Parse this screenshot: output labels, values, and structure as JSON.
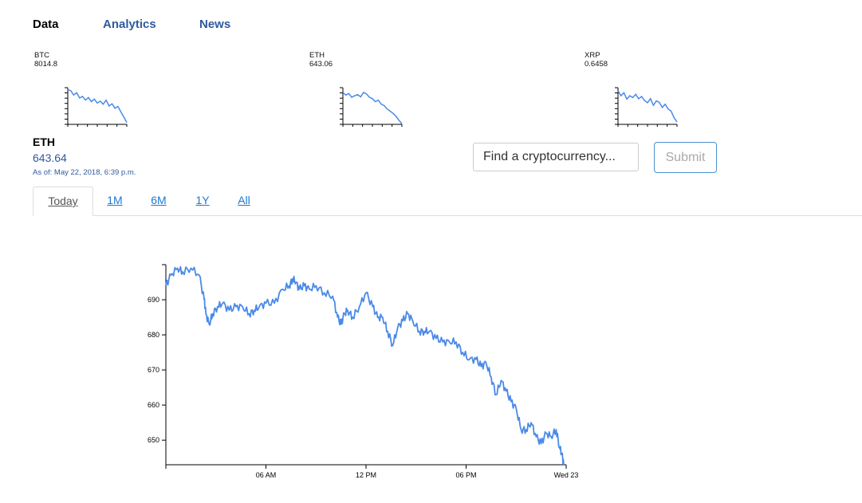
{
  "nav": {
    "items": [
      {
        "label": "Data",
        "active": true
      },
      {
        "label": "Analytics",
        "active": false
      },
      {
        "label": "News",
        "active": false
      }
    ]
  },
  "tickers": [
    {
      "symbol": "BTC",
      "price": "8014.8"
    },
    {
      "symbol": "ETH",
      "price": "643.06"
    },
    {
      "symbol": "XRP",
      "price": "0.6458"
    }
  ],
  "detail": {
    "symbol": "ETH",
    "price": "643.64",
    "as_of": "As of: May 22, 2018, 6:39 p.m."
  },
  "search": {
    "placeholder": "Find a cryptocurrency...",
    "submit_label": "Submit"
  },
  "tabs": [
    {
      "label": "Today",
      "active": true
    },
    {
      "label": "1M",
      "active": false
    },
    {
      "label": "6M",
      "active": false
    },
    {
      "label": "1Y",
      "active": false
    },
    {
      "label": "All",
      "active": false
    }
  ],
  "colors": {
    "line": "#4a8ae8",
    "link": "#1f78d1",
    "accent": "#2f5a9e"
  },
  "chart_data": {
    "type": "line",
    "title": "",
    "xlabel": "",
    "ylabel": "",
    "x_ticks": [
      "06 AM",
      "12 PM",
      "06 PM",
      "Wed 23"
    ],
    "y_ticks": [
      650,
      660,
      670,
      680,
      690
    ],
    "ylim": [
      643,
      700
    ],
    "xlim_hours": [
      0,
      24
    ],
    "series": [
      {
        "x": [
          0,
          0.3,
          0.7,
          1.0,
          1.5,
          2.0,
          2.3,
          2.4,
          2.6,
          2.8,
          3.1,
          3.4,
          3.8,
          4.2,
          4.6,
          5.0,
          5.3,
          5.6,
          6.0,
          6.5,
          7.0,
          7.4,
          7.6,
          7.8,
          8.0,
          8.3,
          8.6,
          9.0,
          9.5,
          10.0,
          10.3,
          10.5,
          10.7,
          10.9,
          11.2,
          11.6,
          12.0,
          12.4,
          12.7,
          13.0,
          13.3,
          13.6,
          13.9,
          14.2,
          14.5,
          14.8,
          15.2,
          15.5,
          15.8,
          16.2,
          16.6,
          17.0,
          17.4,
          17.8,
          18.2,
          18.6,
          18.9,
          19.2,
          19.5,
          19.8,
          20.1,
          20.4,
          20.7,
          21.0,
          21.3,
          21.6,
          21.9,
          22.2,
          22.5,
          22.8,
          23.1,
          23.4,
          23.6,
          23.75,
          23.85
        ],
        "y": [
          694,
          697,
          699,
          698,
          699,
          697,
          690,
          686,
          683,
          686,
          688,
          689,
          687,
          688,
          688,
          686,
          687,
          688,
          689,
          689,
          693,
          694,
          696,
          695,
          693,
          694,
          693,
          694,
          692,
          691,
          685,
          683,
          686,
          687,
          685,
          688,
          692,
          688,
          685,
          685,
          681,
          677,
          682,
          684,
          686,
          684,
          681,
          681,
          681,
          679,
          678,
          678,
          678,
          675,
          673,
          673,
          671,
          672,
          668,
          663,
          667,
          664,
          661,
          659,
          653,
          653,
          655,
          651,
          649,
          652,
          651,
          653,
          648,
          646,
          643
        ]
      }
    ]
  },
  "sparklines": [
    {
      "symbol": "BTC",
      "values": [
        9.5,
        9.2,
        8.0,
        8.6,
        7.2,
        7.6,
        6.6,
        7.3,
        6.2,
        6.9,
        5.8,
        6.3,
        5.5,
        6.6,
        5.0,
        5.6,
        4.4,
        4.9,
        3.4,
        2.0,
        0.5
      ]
    },
    {
      "symbol": "ETH",
      "values": [
        8.6,
        8.0,
        8.4,
        7.4,
        7.8,
        8.1,
        7.5,
        8.7,
        8.3,
        7.4,
        7.0,
        6.2,
        6.6,
        5.5,
        5.1,
        4.2,
        3.6,
        3.0,
        2.2,
        1.1,
        0.2
      ]
    },
    {
      "symbol": "XRP",
      "values": [
        9.2,
        7.8,
        8.6,
        6.9,
        7.8,
        7.3,
        8.2,
        7.0,
        7.6,
        6.5,
        5.9,
        7.0,
        5.2,
        6.4,
        6.0,
        4.6,
        5.5,
        4.2,
        3.6,
        1.8,
        0.7
      ]
    }
  ]
}
